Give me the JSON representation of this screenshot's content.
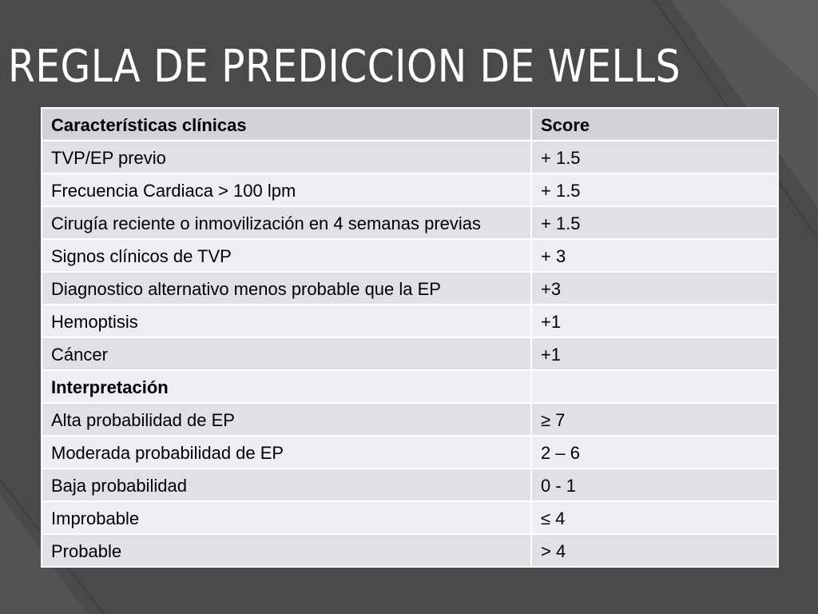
{
  "title": "REGLA DE PREDICCION DE WELLS",
  "table": {
    "headers": [
      "Características clínicas",
      "Score"
    ],
    "rows": [
      [
        "TVP/EP previo",
        "+ 1.5"
      ],
      [
        "Frecuencia Cardiaca > 100 lpm",
        "+ 1.5"
      ],
      [
        "Cirugía reciente o inmovilización en 4 semanas previas",
        "+ 1.5"
      ],
      [
        "Signos clínicos de TVP",
        "+ 3"
      ],
      [
        "Diagnostico alternativo menos probable que la EP",
        "+3"
      ],
      [
        "Hemoptisis",
        "+1"
      ],
      [
        "Cáncer",
        "+1"
      ],
      [
        "Interpretación",
        ""
      ],
      [
        "Alta probabilidad de EP",
        "≥ 7"
      ],
      [
        "Moderada probabilidad de EP",
        "2 – 6"
      ],
      [
        "Baja probabilidad",
        "0 - 1"
      ],
      [
        "Improbable",
        "≤ 4"
      ],
      [
        "Probable",
        "> 4"
      ]
    ]
  }
}
